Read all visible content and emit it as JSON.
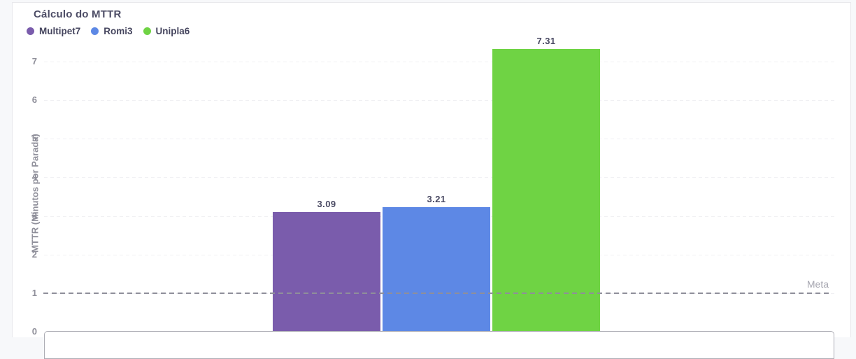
{
  "chart_data": {
    "type": "bar",
    "title": "Cálculo do MTTR",
    "ylabel": "MTTR (Minutos por Parada)",
    "categories": [
      "Multipet7",
      "Romi3",
      "Unipla6"
    ],
    "series": [
      {
        "name": "Multipet7",
        "value": 3.09,
        "label": "3.09",
        "color": "#7A5CAC"
      },
      {
        "name": "Romi3",
        "value": 3.21,
        "label": "3.21",
        "color": "#5D88E5"
      },
      {
        "name": "Unipla6",
        "value": 7.31,
        "label": "7.31",
        "color": "#6FD344"
      }
    ],
    "yticks": [
      0,
      1,
      2,
      3,
      4,
      5,
      6,
      7
    ],
    "ylim": [
      0,
      7.5
    ],
    "grid": "horizontal-dashed",
    "legend_position": "top-left",
    "reference_line": {
      "label": "Meta",
      "value": 1,
      "style": "dashed"
    }
  },
  "colors": {
    "title_text": "#4D4D66",
    "legend_text": "#45455E",
    "tick_text": "#8F8F9A",
    "value_label_text": "#4A4A63",
    "meta_line": "#8F8F9A",
    "meta_label_text": "#A6A6B0",
    "gridline": "#F0F0F3",
    "card_border": "#E8E8EC",
    "bottom_panel_border": "#ACACB4"
  }
}
